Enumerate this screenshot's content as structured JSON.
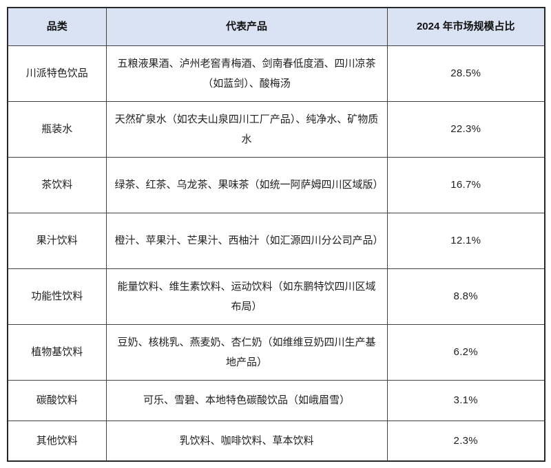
{
  "chart_data": {
    "type": "table",
    "title": "2024 年市场规模占比",
    "categories": [
      "川派特色饮品",
      "瓶装水",
      "茶饮料",
      "果汁饮料",
      "功能性饮料",
      "植物基饮料",
      "碳酸饮料",
      "其他饮料"
    ],
    "values": [
      28.5,
      22.3,
      16.7,
      12.1,
      8.8,
      6.2,
      3.1,
      2.3
    ],
    "unit": "%"
  },
  "table": {
    "headers": {
      "category": "品类",
      "products": "代表产品",
      "share": "2024 年市场规模占比"
    },
    "rows": [
      {
        "category": "川派特色饮品",
        "products": "五粮液果酒、泸州老窖青梅酒、剑南春低度酒、四川凉茶（如蓝剑）、酸梅汤",
        "share": "28.5%"
      },
      {
        "category": "瓶装水",
        "products": "天然矿泉水（如农夫山泉四川工厂产品）、纯净水、矿物质水",
        "share": "22.3%"
      },
      {
        "category": "茶饮料",
        "products": "绿茶、红茶、乌龙茶、果味茶（如统一阿萨姆四川区域版）",
        "share": "16.7%"
      },
      {
        "category": "果汁饮料",
        "products": "橙汁、苹果汁、芒果汁、西柚汁（如汇源四川分公司产品）",
        "share": "12.1%"
      },
      {
        "category": "功能性饮料",
        "products": "能量饮料、维生素饮料、运动饮料（如东鹏特饮四川区域布局）",
        "share": "8.8%"
      },
      {
        "category": "植物基饮料",
        "products": "豆奶、核桃乳、燕麦奶、杏仁奶（如维维豆奶四川生产基地产品）",
        "share": "6.2%"
      },
      {
        "category": "碳酸饮料",
        "products": "可乐、雪碧、本地特色碳酸饮品（如峨眉雪）",
        "share": "3.1%"
      },
      {
        "category": "其他饮料",
        "products": "乳饮料、咖啡饮料、草本饮料",
        "share": "2.3%"
      }
    ],
    "colors": {
      "header_bg": "#dae3f3",
      "border_inner": "#404040",
      "border_outer": "#262626",
      "text": "#212121"
    }
  }
}
